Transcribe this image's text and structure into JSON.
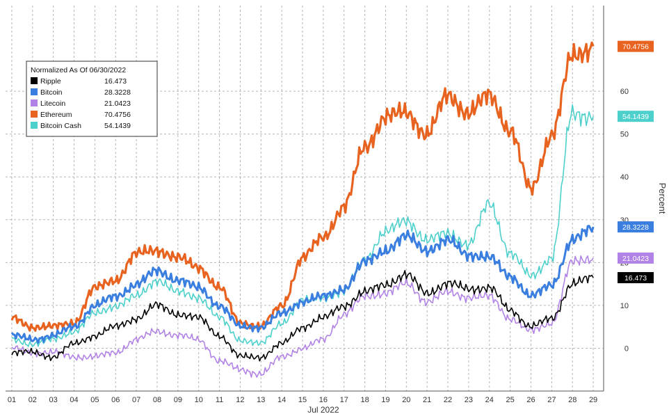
{
  "chart_data": {
    "type": "line",
    "xlabel": "Jul 2022",
    "ylabel": "Percent",
    "x_ticks": [
      "01",
      "02",
      "03",
      "04",
      "05",
      "06",
      "07",
      "08",
      "09",
      "10",
      "11",
      "12",
      "13",
      "14",
      "15",
      "16",
      "17",
      "18",
      "19",
      "20",
      "21",
      "22",
      "23",
      "24",
      "25",
      "26",
      "27",
      "28",
      "29"
    ],
    "y_ticks": [
      0,
      10,
      20,
      30,
      40,
      50,
      60
    ],
    "xlim": [
      0.7,
      29.5
    ],
    "ylim": [
      -10,
      80
    ],
    "grid": true,
    "legend": {
      "title": "Normalized As Of 06/30/2022",
      "placement": "top-left"
    },
    "series": [
      {
        "name": "Ripple",
        "last": "16.473",
        "color": "#000000",
        "x": [
          1,
          2,
          3,
          4,
          5,
          6,
          7,
          8,
          9,
          10,
          11,
          12,
          13,
          14,
          15,
          16,
          17,
          18,
          19,
          20,
          21,
          22,
          23,
          24,
          25,
          26,
          27,
          28,
          29
        ],
        "values": [
          -1,
          -1,
          -2,
          1,
          3,
          5,
          7,
          10,
          8,
          7,
          3,
          -2,
          -2,
          1,
          5,
          7,
          10,
          13,
          15,
          17,
          13,
          15,
          14,
          14,
          9,
          5,
          7,
          15,
          16.473
        ]
      },
      {
        "name": "Bitcoin",
        "last": "28.3228",
        "color": "#3a7ee0",
        "x": [
          1,
          2,
          3,
          4,
          5,
          6,
          7,
          8,
          9,
          10,
          11,
          12,
          13,
          14,
          15,
          16,
          17,
          18,
          19,
          20,
          21,
          22,
          23,
          24,
          25,
          26,
          27,
          28,
          29
        ],
        "values": [
          3,
          2,
          3,
          5,
          10,
          12,
          15,
          18,
          16,
          14,
          10,
          5,
          5,
          8,
          11,
          12,
          14,
          20,
          23,
          26,
          23,
          25,
          22,
          21,
          17,
          12,
          15,
          25,
          28.3228
        ]
      },
      {
        "name": "Litecoin",
        "last": "21.0423",
        "color": "#b283e6",
        "x": [
          1,
          2,
          3,
          4,
          5,
          6,
          7,
          8,
          9,
          10,
          11,
          12,
          13,
          14,
          15,
          16,
          17,
          18,
          19,
          20,
          21,
          22,
          23,
          24,
          25,
          26,
          27,
          28,
          29
        ],
        "values": [
          0,
          -1,
          -1,
          -2,
          -2,
          -1,
          2,
          4,
          3,
          2,
          -3,
          -5,
          -6,
          -2,
          0,
          2,
          8,
          12,
          13,
          15,
          11,
          13,
          12,
          12,
          7,
          4,
          6,
          20,
          21.0423
        ]
      },
      {
        "name": "Ethereum",
        "last": "70.4756",
        "color": "#e8631f",
        "x": [
          1,
          2,
          3,
          4,
          5,
          6,
          7,
          8,
          9,
          10,
          11,
          12,
          13,
          14,
          15,
          16,
          17,
          18,
          19,
          20,
          21,
          22,
          23,
          24,
          25,
          26,
          27,
          28,
          29
        ],
        "values": [
          7,
          5,
          5,
          6,
          14,
          16,
          22,
          23,
          21,
          19,
          14,
          6,
          5,
          10,
          21,
          26,
          33,
          47,
          54,
          55,
          50,
          59,
          55,
          59,
          51,
          37,
          50,
          68,
          70.4756
        ]
      },
      {
        "name": "Bitcoin Cash",
        "last": "54.1439",
        "color": "#4dd0cc",
        "x": [
          1,
          2,
          3,
          4,
          5,
          6,
          7,
          8,
          9,
          10,
          11,
          12,
          13,
          14,
          15,
          16,
          17,
          18,
          19,
          20,
          21,
          22,
          23,
          24,
          25,
          26,
          27,
          28,
          29
        ],
        "values": [
          2,
          1,
          2,
          4,
          8,
          10,
          12,
          16,
          13,
          12,
          7,
          2,
          1,
          6,
          11,
          12,
          13,
          21,
          27,
          30,
          25,
          27,
          24,
          34,
          22,
          17,
          21,
          55,
          54.1439
        ]
      }
    ]
  }
}
